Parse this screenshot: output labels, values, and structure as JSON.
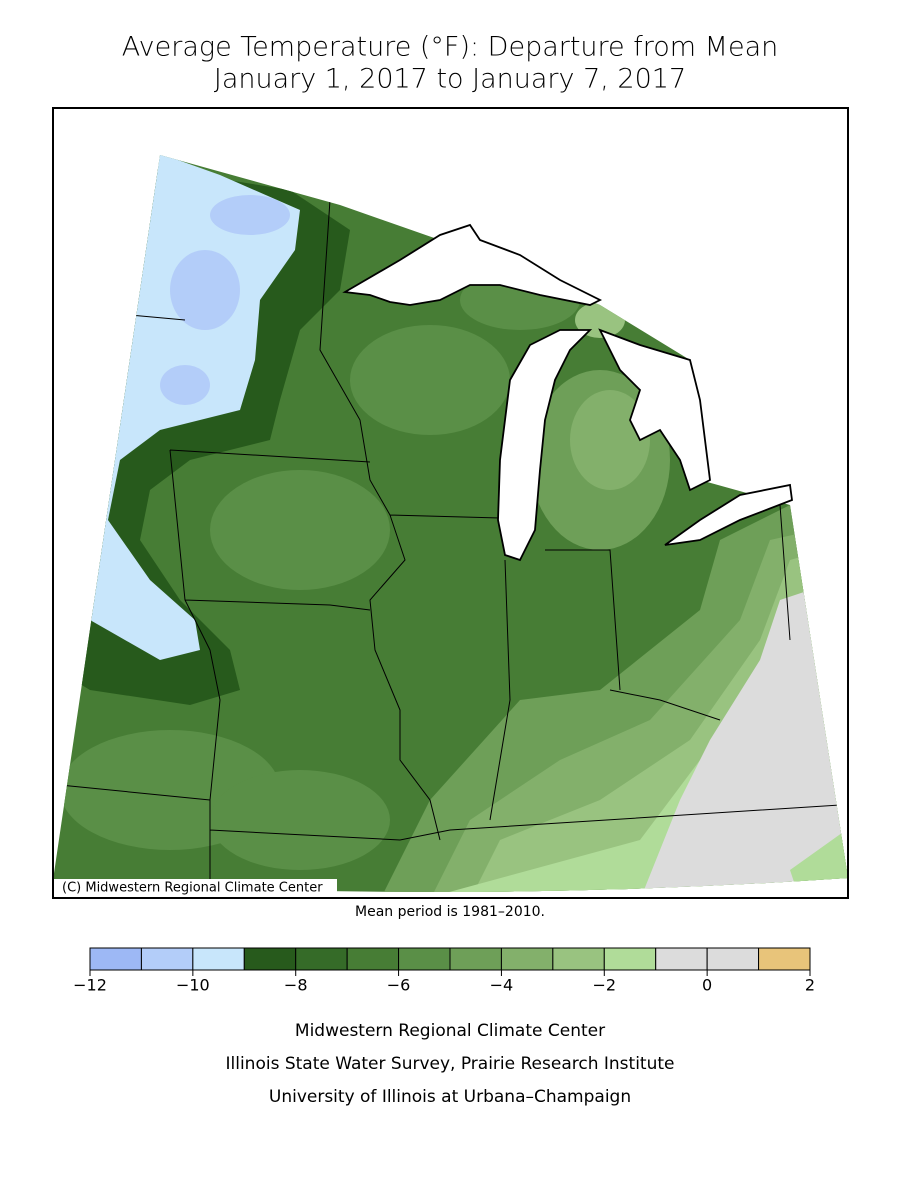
{
  "title": {
    "line1": "Average Temperature (°F): Departure from Mean",
    "line2": "January 1, 2017 to January 7, 2017"
  },
  "map": {
    "credit": "(C) Midwestern Regional Climate Center",
    "note": "Mean period is 1981–2010."
  },
  "legend": {
    "bins": [
      -12,
      -11,
      -10,
      -9,
      -8,
      -7,
      -6,
      -5,
      -4,
      -3,
      -2,
      -1,
      0,
      1,
      2
    ],
    "colors": [
      "#9db8f5",
      "#b3cdf9",
      "#c8e6fb",
      "#275a1c",
      "#356b28",
      "#477d35",
      "#5a8f47",
      "#6e9f58",
      "#83b06b",
      "#99c380",
      "#b0dc99",
      "#dcdcdc",
      "#dcdcdc",
      "#e8c47a"
    ],
    "ticks": [
      {
        "value": -12,
        "label": "−12"
      },
      {
        "value": -10,
        "label": "−10"
      },
      {
        "value": -8,
        "label": "−8"
      },
      {
        "value": -6,
        "label": "−6"
      },
      {
        "value": -4,
        "label": "−4"
      },
      {
        "value": -2,
        "label": "−2"
      },
      0,
      2
    ]
  },
  "footer": {
    "lines": [
      "Midwestern Regional Climate Center",
      "Illinois State Water Survey, Prairie Research Institute",
      "University of Illinois at Urbana–Champaign"
    ]
  }
}
